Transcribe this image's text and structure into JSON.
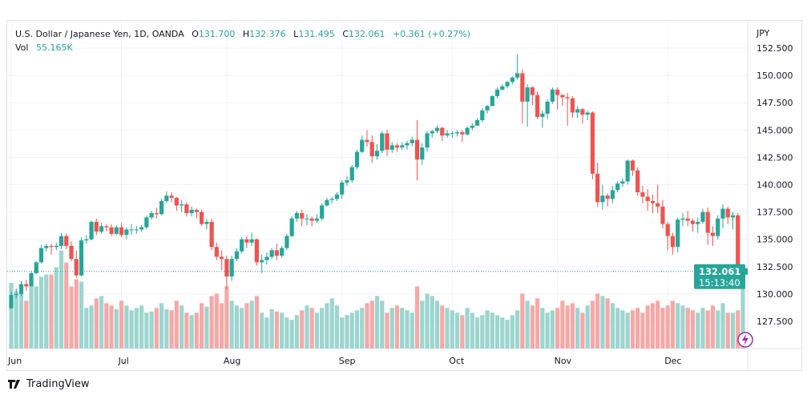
{
  "legend": {
    "symbol": "U.S. Dollar / Japanese Yen, 1D, OANDA",
    "open_label": "O",
    "open": "131.700",
    "high_label": "H",
    "high": "132.376",
    "low_label": "L",
    "low": "131.495",
    "close_label": "C",
    "close": "132.061",
    "change": "+0.361 (+0.27%)",
    "vol_label": "Vol",
    "vol": "55.165K"
  },
  "price_label": {
    "price": "132.061",
    "countdown": "15:13:40"
  },
  "brand": "TradingView",
  "colors": {
    "up": "#26a69a",
    "down": "#ef5350",
    "up_vol": "#9dd5cf",
    "down_vol": "#f5a9a7",
    "grid": "#f0f3fa"
  },
  "chart_data": {
    "type": "candlestick",
    "title": "U.S. Dollar / Japanese Yen, 1D, OANDA",
    "currency_label": "JPY",
    "ylim": [
      125.5,
      153.5
    ],
    "yticks": [
      "152.500",
      "150.000",
      "147.500",
      "145.000",
      "142.500",
      "140.000",
      "137.500",
      "135.000",
      "132.500",
      "130.000",
      "127.500"
    ],
    "xticks": [
      {
        "label": "Jun",
        "index": 0
      },
      {
        "label": "Jul",
        "index": 22
      },
      {
        "label": "Aug",
        "index": 43
      },
      {
        "label": "Sep",
        "index": 66
      },
      {
        "label": "Oct",
        "index": 88
      },
      {
        "label": "Nov",
        "index": 109
      },
      {
        "label": "Dec",
        "index": 131
      }
    ],
    "first_open": 128.7,
    "close": [
      129.9,
      130.0,
      130.9,
      130.7,
      131.9,
      132.9,
      134.2,
      134.4,
      134.3,
      134.4,
      135.3,
      134.4,
      133.2,
      131.7,
      134.9,
      135.0,
      136.6,
      135.7,
      136.2,
      136.1,
      135.5,
      136.1,
      135.4,
      135.9,
      135.9,
      135.9,
      136.1,
      137.0,
      137.4,
      137.3,
      138.5,
      139.0,
      138.8,
      138.1,
      138.2,
      137.4,
      137.7,
      137.5,
      136.4,
      136.6,
      134.3,
      133.4,
      133.2,
      131.6,
      133.2,
      133.9,
      135.0,
      134.7,
      135.0,
      132.9,
      133.1,
      133.4,
      134.0,
      133.5,
      134.2,
      135.3,
      136.9,
      137.4,
      136.9,
      136.9,
      136.7,
      136.9,
      138.1,
      138.6,
      138.7,
      139.1,
      140.2,
      140.4,
      141.6,
      143.0,
      144.1,
      143.9,
      142.6,
      143.1,
      144.7,
      143.2,
      143.6,
      143.4,
      143.6,
      143.8,
      144.1,
      142.3,
      143.4,
      144.7,
      144.9,
      145.2,
      144.5,
      144.7,
      144.7,
      144.8,
      144.6,
      145.2,
      145.4,
      145.9,
      146.8,
      147.2,
      148.1,
      148.7,
      149.0,
      149.4,
      149.8,
      150.2,
      147.6,
      148.9,
      148.2,
      146.2,
      146.5,
      147.6,
      148.7,
      148.2,
      148.0,
      147.9,
      146.6,
      146.9,
      146.4,
      146.6,
      141.0,
      138.4,
      139.0,
      138.7,
      139.5,
      140.1,
      140.3,
      142.2,
      141.3,
      139.3,
      138.9,
      138.5,
      138.3,
      138.0,
      136.4,
      135.3,
      134.3,
      136.8,
      136.9,
      136.7,
      136.4,
      136.6,
      137.5,
      135.6,
      135.3,
      136.9,
      137.8,
      137.0,
      137.2,
      131.7,
      132.061
    ],
    "high": [
      130.2,
      130.5,
      131.2,
      131.3,
      132.1,
      133.0,
      134.5,
      134.6,
      134.6,
      134.7,
      135.6,
      135.5,
      134.8,
      134.0,
      135.2,
      135.4,
      136.7,
      136.9,
      136.5,
      136.4,
      136.4,
      136.3,
      136.5,
      136.1,
      136.4,
      136.2,
      136.3,
      137.2,
      137.6,
      137.9,
      138.7,
      139.4,
      139.3,
      138.9,
      138.6,
      138.4,
      138.0,
      137.8,
      137.7,
      136.9,
      136.9,
      134.7,
      134.0,
      133.5,
      133.5,
      134.2,
      135.2,
      135.3,
      135.6,
      135.1,
      133.6,
      133.8,
      134.2,
      134.6,
      134.4,
      135.5,
      137.1,
      137.6,
      137.7,
      137.3,
      137.1,
      137.3,
      138.3,
      138.8,
      138.9,
      139.3,
      140.4,
      140.8,
      141.8,
      143.2,
      144.5,
      145.0,
      144.5,
      143.7,
      144.9,
      145.0,
      143.9,
      143.8,
      143.9,
      144.0,
      144.4,
      145.9,
      143.8,
      144.9,
      145.0,
      145.4,
      145.3,
      145.0,
      144.9,
      145.0,
      145.0,
      145.3,
      145.6,
      146.1,
      147.0,
      147.3,
      148.2,
      148.9,
      149.2,
      149.5,
      149.9,
      151.9,
      150.5,
      149.2,
      149.0,
      148.5,
      146.8,
      147.8,
      148.9,
      148.9,
      148.3,
      148.4,
      148.1,
      147.2,
      147.0,
      146.8,
      146.7,
      142.0,
      140.0,
      139.2,
      139.9,
      140.3,
      140.6,
      142.3,
      142.3,
      141.6,
      139.9,
      139.6,
      139.1,
      140.0,
      138.6,
      136.6,
      135.6,
      137.0,
      137.4,
      137.6,
      136.9,
      137.0,
      137.8,
      137.9,
      136.2,
      137.2,
      138.2,
      138.0,
      137.5,
      137.4,
      132.4
    ],
    "low": [
      128.6,
      129.6,
      129.8,
      130.3,
      130.7,
      131.8,
      132.8,
      133.9,
      133.6,
      134.0,
      134.1,
      134.1,
      133.0,
      131.5,
      131.6,
      134.6,
      134.9,
      135.4,
      135.5,
      135.7,
      135.3,
      135.4,
      135.2,
      135.0,
      135.4,
      135.5,
      135.7,
      135.9,
      136.8,
      136.9,
      137.2,
      138.3,
      138.4,
      137.6,
      137.5,
      137.1,
      137.1,
      136.9,
      136.2,
      135.9,
      134.0,
      133.1,
      132.2,
      130.4,
      131.2,
      133.0,
      133.7,
      134.2,
      134.4,
      132.6,
      131.9,
      132.7,
      133.2,
      133.1,
      133.3,
      134.0,
      135.2,
      136.6,
      136.2,
      136.3,
      136.2,
      136.5,
      136.7,
      138.0,
      138.3,
      138.5,
      138.7,
      139.9,
      140.2,
      141.4,
      142.9,
      143.5,
      142.0,
      142.3,
      142.9,
      142.6,
      142.9,
      143.0,
      143.2,
      143.2,
      143.5,
      140.4,
      141.8,
      143.0,
      144.3,
      144.7,
      144.0,
      144.3,
      144.3,
      144.4,
      143.9,
      144.5,
      145.0,
      145.5,
      145.7,
      146.5,
      147.2,
      147.9,
      148.6,
      148.8,
      149.2,
      149.6,
      145.6,
      145.3,
      147.3,
      146.0,
      145.2,
      146.0,
      147.4,
      146.9,
      147.2,
      145.4,
      146.1,
      146.1,
      145.6,
      145.9,
      140.5,
      138.0,
      137.7,
      138.0,
      138.3,
      139.3,
      139.8,
      140.0,
      140.8,
      139.0,
      138.3,
      137.6,
      137.4,
      137.4,
      136.0,
      134.0,
      133.6,
      133.8,
      136.2,
      136.2,
      135.7,
      135.6,
      136.4,
      134.5,
      134.4,
      135.0,
      136.0,
      136.4,
      135.9,
      130.6,
      131.5
    ],
    "volume": [
      55,
      48,
      46,
      40,
      58,
      52,
      60,
      62,
      62,
      68,
      82,
      72,
      52,
      58,
      56,
      34,
      36,
      42,
      44,
      38,
      36,
      33,
      40,
      36,
      32,
      34,
      36,
      30,
      31,
      34,
      38,
      33,
      32,
      40,
      36,
      30,
      28,
      30,
      38,
      35,
      44,
      46,
      38,
      52,
      40,
      36,
      34,
      38,
      40,
      44,
      30,
      26,
      33,
      31,
      30,
      26,
      24,
      28,
      32,
      36,
      34,
      30,
      34,
      38,
      42,
      36,
      26,
      28,
      30,
      32,
      34,
      38,
      40,
      44,
      40,
      30,
      34,
      36,
      34,
      32,
      30,
      52,
      40,
      46,
      44,
      40,
      36,
      34,
      32,
      30,
      28,
      34,
      30,
      26,
      28,
      32,
      30,
      28,
      26,
      24,
      28,
      32,
      46,
      40,
      36,
      42,
      34,
      30,
      32,
      34,
      40,
      36,
      38,
      34,
      30,
      36,
      40,
      46,
      44,
      42,
      38,
      34,
      32,
      30,
      32,
      34,
      30,
      36,
      38,
      40,
      34,
      36,
      40,
      38,
      36,
      34,
      32,
      30,
      34,
      32,
      36,
      32,
      38,
      30,
      30,
      32,
      55.165
    ]
  }
}
